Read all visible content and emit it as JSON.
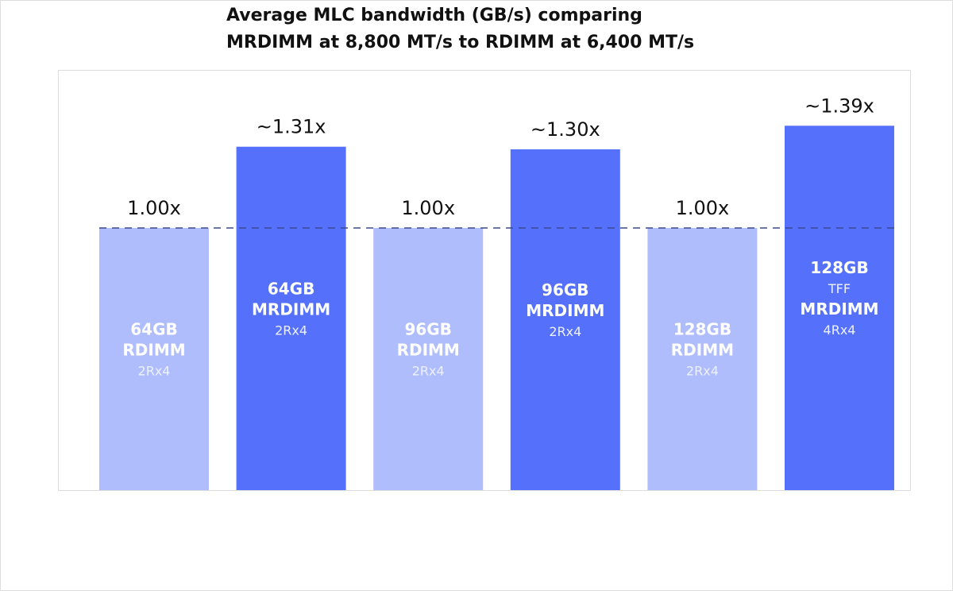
{
  "chart_data": {
    "type": "bar",
    "title": [
      "Average MLC bandwidth (GB/s) comparing",
      "MRDIMM at 8,800 MT/s  to RDIMM at 6,400 MT/s"
    ],
    "categories": [
      [
        "64GB",
        "RDIMM",
        "2Rx4"
      ],
      [
        "64GB",
        "MRDIMM",
        "2Rx4"
      ],
      [
        "96GB",
        "RDIMM",
        "2Rx4"
      ],
      [
        "96GB",
        "MRDIMM",
        "2Rx4"
      ],
      [
        "128GB",
        "RDIMM",
        "2Rx4"
      ],
      [
        "128GB",
        "TFF",
        "MRDIMM",
        "4Rx4"
      ]
    ],
    "values": [
      1.0,
      1.31,
      1.0,
      1.3,
      1.0,
      1.39
    ],
    "value_labels": [
      "1.00x",
      "~1.31x",
      "1.00x",
      "~1.30x",
      "1.00x",
      "~1.39x"
    ],
    "colors": [
      "#b0bdfd",
      "#5570fa",
      "#b0bdfd",
      "#5570fa",
      "#b0bdfd",
      "#5570fa"
    ],
    "reference_line": 1
  }
}
